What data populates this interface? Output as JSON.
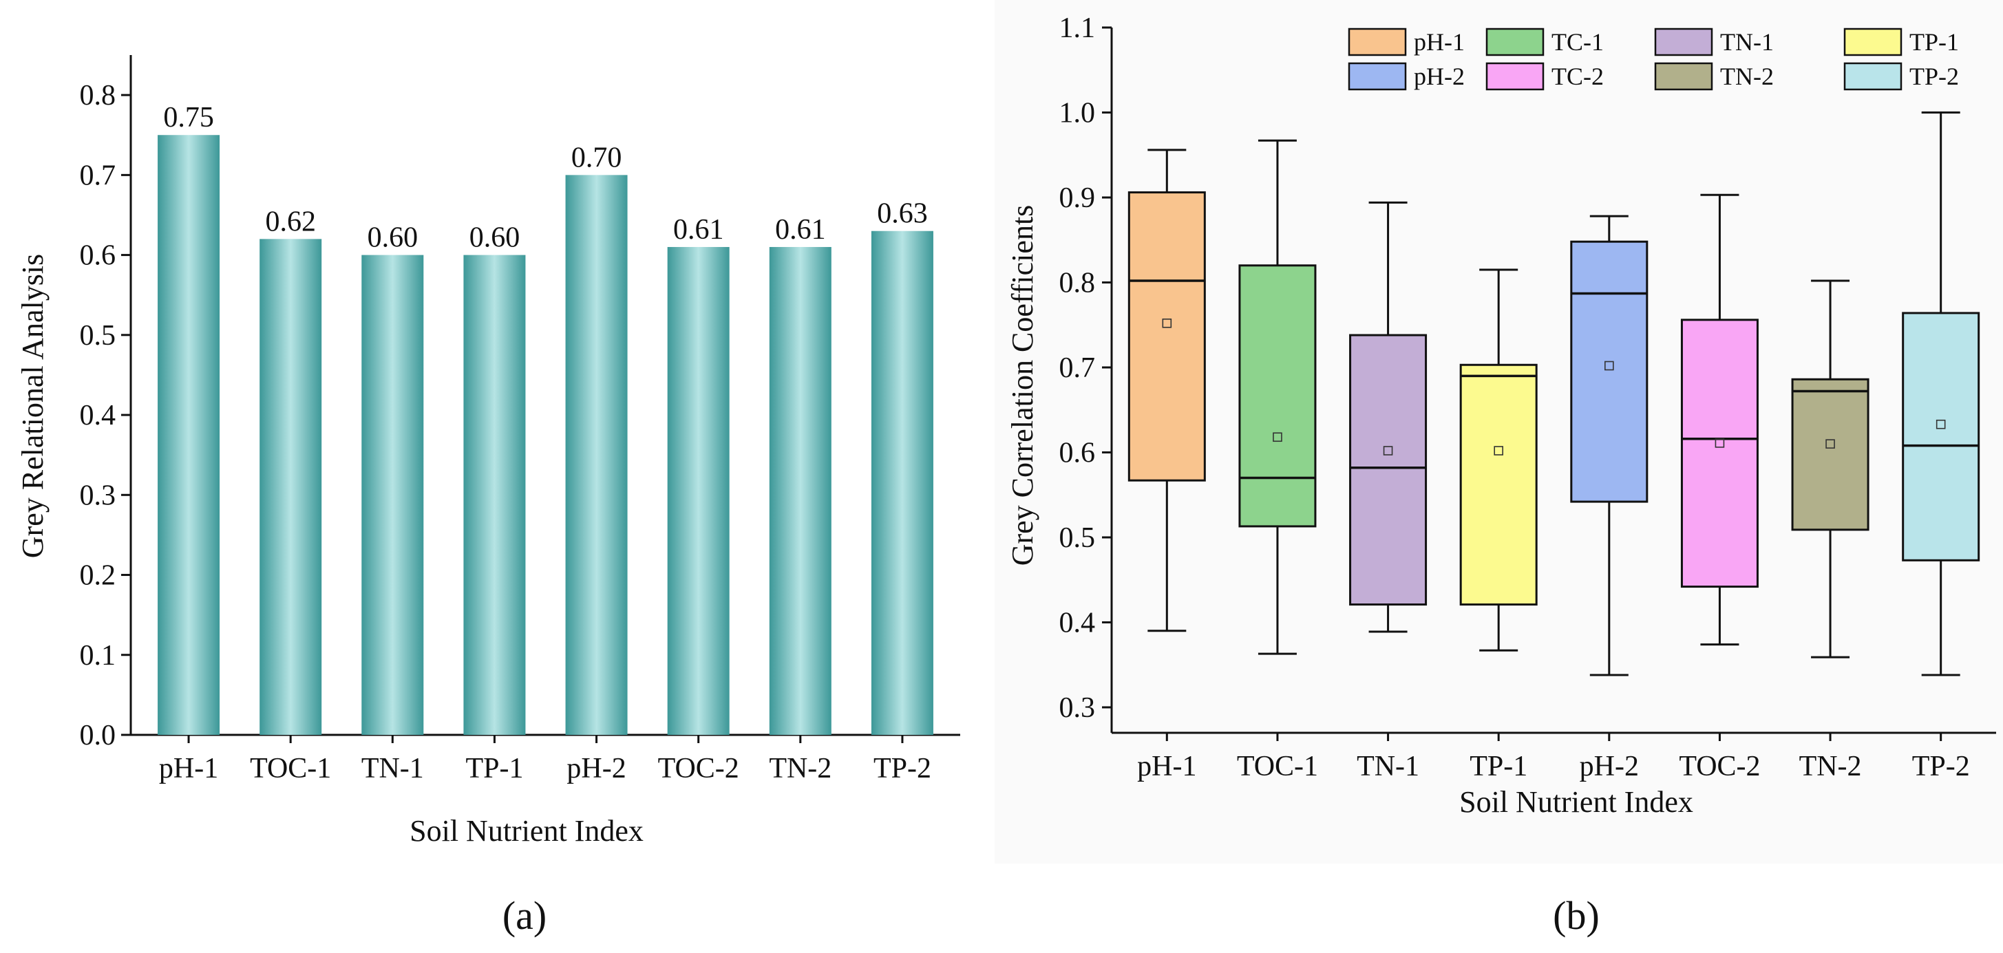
{
  "panel_labels": [
    "(a)",
    "(b)"
  ],
  "chart_data": [
    {
      "type": "bar",
      "categories": [
        "pH-1",
        "TOC-1",
        "TN-1",
        "TP-1",
        "pH-2",
        "TOC-2",
        "TN-2",
        "TP-2"
      ],
      "values": [
        0.75,
        0.62,
        0.6,
        0.6,
        0.7,
        0.61,
        0.61,
        0.63
      ],
      "data_labels": [
        "0.75",
        "0.62",
        "0.60",
        "0.60",
        "0.70",
        "0.61",
        "0.61",
        "0.63"
      ],
      "xlabel": "Soil Nutrient Index",
      "ylabel": "Grey Relational Analysis",
      "ylim": [
        0,
        0.85
      ],
      "yticks": [
        "0.0",
        "0.1",
        "0.2",
        "0.3",
        "0.4",
        "0.5",
        "0.6",
        "0.7",
        "0.8"
      ],
      "bar_color": "#5fb2b2",
      "grid": false
    },
    {
      "type": "box",
      "categories": [
        "pH-1",
        "TOC-1",
        "TN-1",
        "TP-1",
        "pH-2",
        "TOC-2",
        "TN-2",
        "TP-2"
      ],
      "boxes": [
        {
          "name": "pH-1",
          "whisker_low": 0.39,
          "q1": 0.567,
          "median": 0.802,
          "q3": 0.906,
          "whisker_high": 0.956,
          "mean": 0.752,
          "color": "#f9c48e"
        },
        {
          "name": "TC-1",
          "whisker_low": 0.363,
          "q1": 0.513,
          "median": 0.57,
          "q3": 0.82,
          "whisker_high": 0.967,
          "mean": 0.618,
          "color": "#8dd38d"
        },
        {
          "name": "TN-1",
          "whisker_low": 0.389,
          "q1": 0.421,
          "median": 0.582,
          "q3": 0.738,
          "whisker_high": 0.894,
          "mean": 0.602,
          "color": "#c3aed6"
        },
        {
          "name": "TP-1",
          "whisker_low": 0.367,
          "q1": 0.421,
          "median": 0.69,
          "q3": 0.703,
          "whisker_high": 0.815,
          "mean": 0.602,
          "color": "#fcfa8f"
        },
        {
          "name": "pH-2",
          "whisker_low": 0.338,
          "q1": 0.542,
          "median": 0.787,
          "q3": 0.848,
          "whisker_high": 0.878,
          "mean": 0.702,
          "color": "#9db7f2"
        },
        {
          "name": "TC-2",
          "whisker_low": 0.374,
          "q1": 0.442,
          "median": 0.616,
          "q3": 0.756,
          "whisker_high": 0.903,
          "mean": 0.611,
          "color": "#f9a6f5"
        },
        {
          "name": "TN-2",
          "whisker_low": 0.359,
          "q1": 0.509,
          "median": 0.672,
          "q3": 0.686,
          "whisker_high": 0.802,
          "mean": 0.61,
          "color": "#b1b08b"
        },
        {
          "name": "TP-2",
          "whisker_low": 0.338,
          "q1": 0.473,
          "median": 0.608,
          "q3": 0.764,
          "whisker_high": 1.0,
          "mean": 0.633,
          "color": "#b9e4ea"
        }
      ],
      "legend": [
        "pH-1",
        "TC-1",
        "TN-1",
        "TP-1",
        "pH-2",
        "TC-2",
        "TN-2",
        "TP-2"
      ],
      "legend_position": "top",
      "xlabel": "Soil Nutrient Index",
      "ylabel": "Grey Correlation Coefficients",
      "ylim": [
        0.27,
        1.1
      ],
      "yticks": [
        "0.3",
        "0.4",
        "0.5",
        "0.6",
        "0.7",
        "0.8",
        "0.9",
        "1.0",
        "1.1"
      ],
      "grid": false
    }
  ]
}
